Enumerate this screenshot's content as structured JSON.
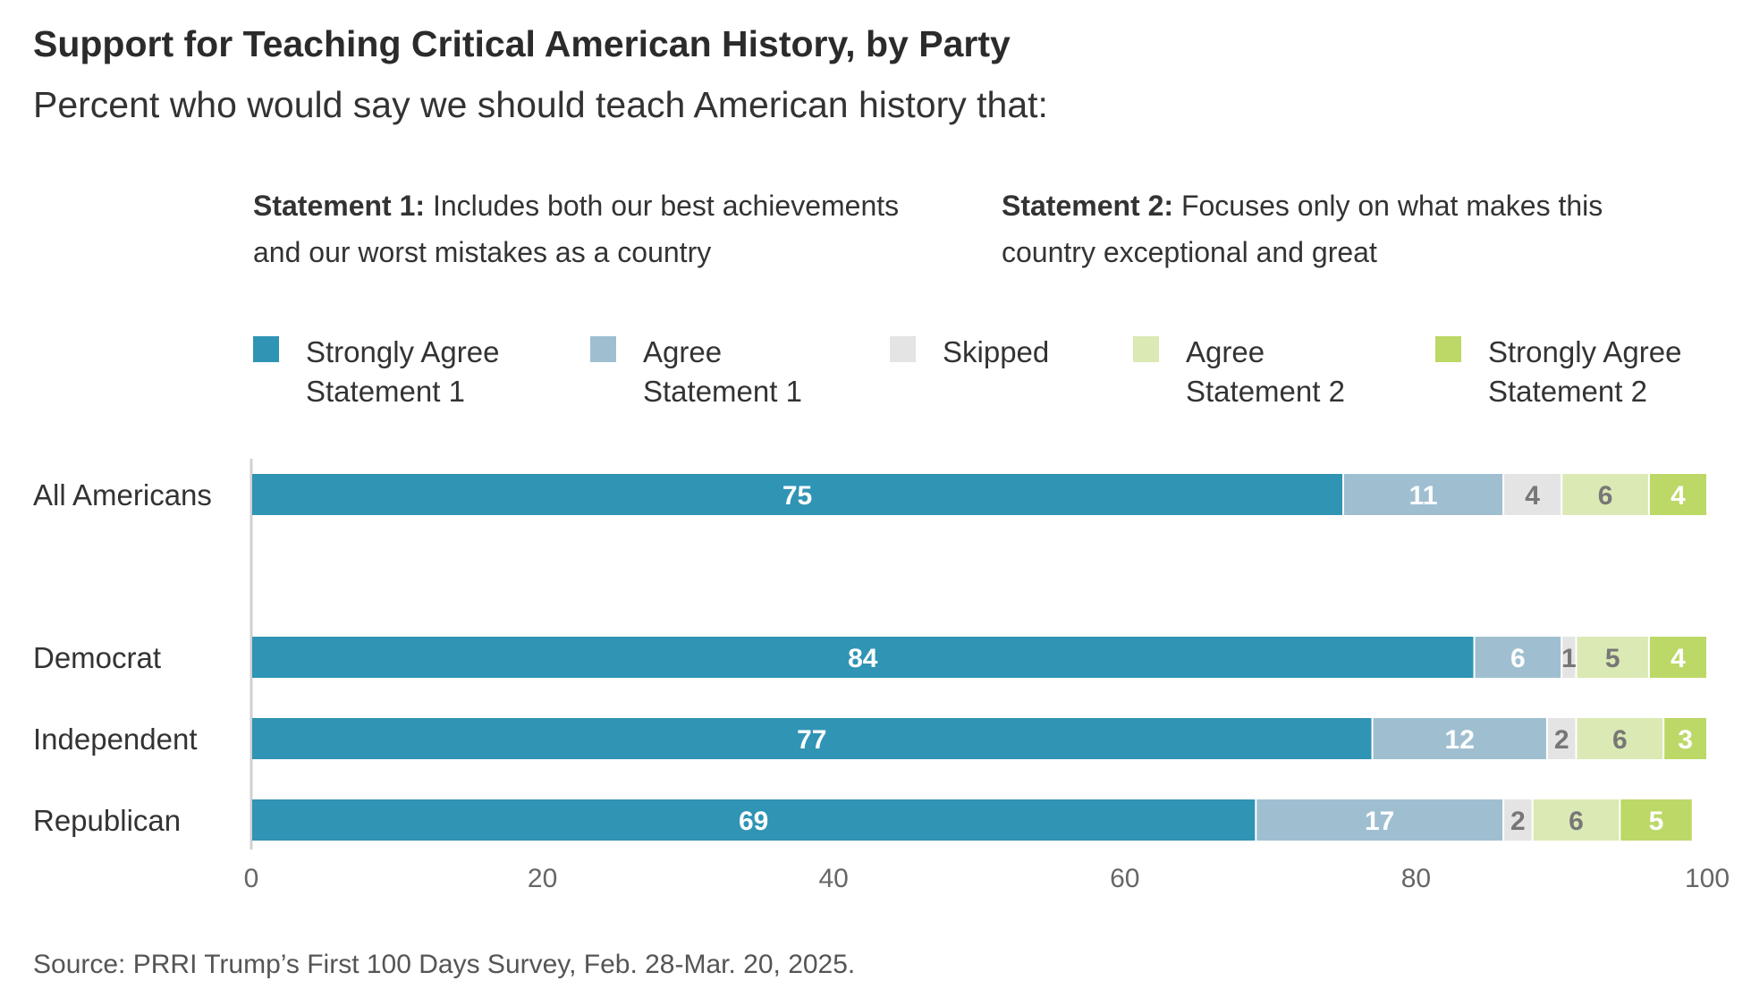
{
  "chart_data": {
    "type": "bar",
    "orientation": "horizontal",
    "stacked": true,
    "title": "Support for Teaching Critical American History, by Party",
    "subtitle": "Percent who would say we should teach American history that:",
    "statement1": {
      "bold": "Statement 1:",
      "line1_rest": " Includes both our best achievements",
      "line2": "and our worst mistakes as a country"
    },
    "statement2": {
      "bold": "Statement 2:",
      "line1_rest": " Focuses only on what makes this",
      "line2": "country exceptional and great"
    },
    "categories": [
      "All Americans",
      "Democrat",
      "Independent",
      "Republican"
    ],
    "series": [
      {
        "name": "Strongly Agree Statement 1",
        "legend_lines": [
          "Strongly Agree",
          "Statement 1"
        ],
        "color": "#3094b4",
        "label_color": "#ffffff",
        "values": [
          75,
          84,
          77,
          69
        ]
      },
      {
        "name": "Agree Statement 1",
        "legend_lines": [
          "Agree",
          "Statement 1"
        ],
        "color": "#9fbfd1",
        "label_color": "#ffffff",
        "values": [
          11,
          6,
          12,
          17
        ]
      },
      {
        "name": "Skipped",
        "legend_lines": [
          "Skipped",
          ""
        ],
        "color": "#e4e4e4",
        "label_color": "#777777",
        "values": [
          4,
          1,
          2,
          2
        ]
      },
      {
        "name": "Agree Statement 2",
        "legend_lines": [
          "Agree",
          "Statement 2"
        ],
        "color": "#dbe9b4",
        "label_color": "#777777",
        "values": [
          6,
          5,
          6,
          6
        ]
      },
      {
        "name": "Strongly Agree Statement 2",
        "legend_lines": [
          "Strongly Agree",
          "Statement 2"
        ],
        "color": "#bcd867",
        "label_color": "#ffffff",
        "values": [
          4,
          4,
          3,
          5
        ]
      }
    ],
    "xlim": [
      0,
      100
    ],
    "xticks": [
      0,
      20,
      40,
      60,
      80,
      100
    ],
    "grid": false,
    "legend_position": "top"
  },
  "source": "Source: PRRI Trump’s First 100 Days Survey, Feb. 28-Mar. 20, 2025."
}
